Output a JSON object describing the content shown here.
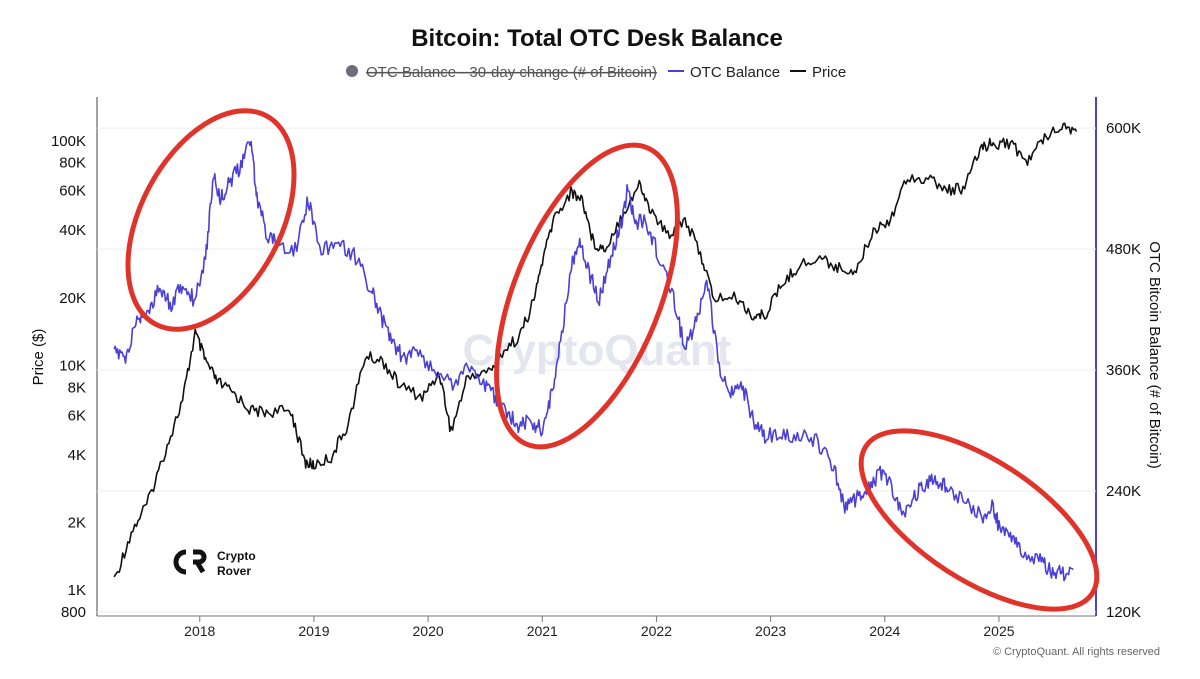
{
  "chart_data": {
    "type": "line",
    "title": "Bitcoin: Total OTC Desk Balance",
    "legend": [
      {
        "name": "OTC Balance - 30-day change (# of Bitcoin)",
        "color": "#6b6e78",
        "marker": "dot",
        "disabled": true
      },
      {
        "name": "OTC Balance",
        "color": "#4b3fd6",
        "marker": "line"
      },
      {
        "name": "Price",
        "color": "#111111",
        "marker": "line"
      }
    ],
    "ylabel_left": "Price ($)",
    "ylabel_right": "OTC Bitcoin Balance (# of Bitcoin)",
    "x_ticks": [
      "2018",
      "2019",
      "2020",
      "2021",
      "2022",
      "2023",
      "2024",
      "2025"
    ],
    "x_tick_years": [
      2018,
      2019,
      2020,
      2021,
      2022,
      2023,
      2024,
      2025
    ],
    "x_range": [
      2017.1,
      2025.85
    ],
    "y_left_scale": "log",
    "y_left_range": [
      800,
      140000
    ],
    "y_left_ticks": [
      {
        "label": "100K",
        "value": 100000
      },
      {
        "label": "80K",
        "value": 80000
      },
      {
        "label": "60K",
        "value": 60000
      },
      {
        "label": "40K",
        "value": 40000
      },
      {
        "label": "20K",
        "value": 20000
      },
      {
        "label": "10K",
        "value": 10000
      },
      {
        "label": "8K",
        "value": 8000
      },
      {
        "label": "6K",
        "value": 6000
      },
      {
        "label": "4K",
        "value": 4000
      },
      {
        "label": "2K",
        "value": 2000
      },
      {
        "label": "1K",
        "value": 1000
      },
      {
        "label": "800",
        "value": 800
      }
    ],
    "y_right_range": [
      120000,
      620000
    ],
    "y_right_ticks": [
      {
        "label": "600K",
        "value": 600000
      },
      {
        "label": "480K",
        "value": 480000
      },
      {
        "label": "360K",
        "value": 360000
      },
      {
        "label": "240K",
        "value": 240000
      },
      {
        "label": "120K",
        "value": 120000
      }
    ],
    "series": [
      {
        "name": "Price",
        "axis": "left",
        "color": "#111111",
        "points": [
          [
            2017.25,
            1100
          ],
          [
            2017.4,
            1800
          ],
          [
            2017.55,
            2500
          ],
          [
            2017.7,
            4200
          ],
          [
            2017.85,
            7000
          ],
          [
            2017.96,
            14000
          ],
          [
            2018.05,
            10500
          ],
          [
            2018.15,
            8500
          ],
          [
            2018.3,
            7500
          ],
          [
            2018.45,
            6300
          ],
          [
            2018.6,
            6200
          ],
          [
            2018.8,
            6300
          ],
          [
            2018.92,
            3700
          ],
          [
            2019.0,
            3600
          ],
          [
            2019.15,
            3900
          ],
          [
            2019.3,
            5500
          ],
          [
            2019.45,
            11000
          ],
          [
            2019.6,
            10500
          ],
          [
            2019.75,
            8200
          ],
          [
            2019.95,
            7200
          ],
          [
            2020.1,
            9300
          ],
          [
            2020.2,
            5100
          ],
          [
            2020.35,
            9000
          ],
          [
            2020.55,
            9500
          ],
          [
            2020.65,
            11500
          ],
          [
            2020.8,
            13500
          ],
          [
            2020.92,
            19000
          ],
          [
            2021.0,
            29000
          ],
          [
            2021.1,
            45000
          ],
          [
            2021.25,
            59000
          ],
          [
            2021.35,
            55000
          ],
          [
            2021.45,
            35000
          ],
          [
            2021.55,
            33000
          ],
          [
            2021.7,
            47000
          ],
          [
            2021.85,
            64000
          ],
          [
            2021.95,
            49000
          ],
          [
            2022.1,
            38000
          ],
          [
            2022.25,
            45000
          ],
          [
            2022.4,
            30000
          ],
          [
            2022.5,
            20000
          ],
          [
            2022.7,
            20000
          ],
          [
            2022.85,
            16500
          ],
          [
            2022.95,
            16800
          ],
          [
            2023.1,
            23000
          ],
          [
            2023.25,
            28000
          ],
          [
            2023.45,
            30000
          ],
          [
            2023.6,
            27000
          ],
          [
            2023.75,
            26500
          ],
          [
            2023.9,
            40000
          ],
          [
            2024.05,
            45000
          ],
          [
            2024.2,
            70000
          ],
          [
            2024.4,
            67000
          ],
          [
            2024.55,
            60000
          ],
          [
            2024.7,
            62000
          ],
          [
            2024.85,
            95000
          ],
          [
            2024.95,
            97000
          ],
          [
            2025.1,
            98000
          ],
          [
            2025.25,
            80000
          ],
          [
            2025.4,
            105000
          ],
          [
            2025.55,
            118000
          ],
          [
            2025.68,
            110000
          ]
        ]
      },
      {
        "name": "OTC Balance",
        "axis": "right",
        "color": "#4b3fd6",
        "points": [
          [
            2017.25,
            380000
          ],
          [
            2017.35,
            370000
          ],
          [
            2017.45,
            410000
          ],
          [
            2017.55,
            420000
          ],
          [
            2017.65,
            440000
          ],
          [
            2017.75,
            425000
          ],
          [
            2017.85,
            445000
          ],
          [
            2017.95,
            430000
          ],
          [
            2018.05,
            470000
          ],
          [
            2018.12,
            555000
          ],
          [
            2018.18,
            530000
          ],
          [
            2018.25,
            545000
          ],
          [
            2018.35,
            560000
          ],
          [
            2018.45,
            590000
          ],
          [
            2018.5,
            530000
          ],
          [
            2018.6,
            490000
          ],
          [
            2018.7,
            485000
          ],
          [
            2018.85,
            480000
          ],
          [
            2018.95,
            530000
          ],
          [
            2019.05,
            480000
          ],
          [
            2019.2,
            485000
          ],
          [
            2019.35,
            475000
          ],
          [
            2019.5,
            440000
          ],
          [
            2019.6,
            410000
          ],
          [
            2019.7,
            385000
          ],
          [
            2019.8,
            370000
          ],
          [
            2019.9,
            380000
          ],
          [
            2020.05,
            360000
          ],
          [
            2020.2,
            345000
          ],
          [
            2020.35,
            365000
          ],
          [
            2020.5,
            345000
          ],
          [
            2020.6,
            330000
          ],
          [
            2020.7,
            315000
          ],
          [
            2020.8,
            305000
          ],
          [
            2020.9,
            310000
          ],
          [
            2021.0,
            300000
          ],
          [
            2021.08,
            335000
          ],
          [
            2021.15,
            380000
          ],
          [
            2021.25,
            460000
          ],
          [
            2021.32,
            490000
          ],
          [
            2021.4,
            460000
          ],
          [
            2021.5,
            430000
          ],
          [
            2021.6,
            470000
          ],
          [
            2021.68,
            500000
          ],
          [
            2021.75,
            540000
          ],
          [
            2021.82,
            505000
          ],
          [
            2021.9,
            510000
          ],
          [
            2022.0,
            480000
          ],
          [
            2022.15,
            430000
          ],
          [
            2022.25,
            380000
          ],
          [
            2022.35,
            410000
          ],
          [
            2022.45,
            445000
          ],
          [
            2022.55,
            360000
          ],
          [
            2022.65,
            335000
          ],
          [
            2022.75,
            345000
          ],
          [
            2022.85,
            310000
          ],
          [
            2022.95,
            295000
          ],
          [
            2023.1,
            295000
          ],
          [
            2023.25,
            295000
          ],
          [
            2023.4,
            290000
          ],
          [
            2023.55,
            265000
          ],
          [
            2023.65,
            225000
          ],
          [
            2023.75,
            232000
          ],
          [
            2023.85,
            240000
          ],
          [
            2023.95,
            258000
          ],
          [
            2024.05,
            245000
          ],
          [
            2024.15,
            215000
          ],
          [
            2024.25,
            235000
          ],
          [
            2024.35,
            245000
          ],
          [
            2024.45,
            252000
          ],
          [
            2024.55,
            245000
          ],
          [
            2024.7,
            230000
          ],
          [
            2024.85,
            215000
          ],
          [
            2024.95,
            225000
          ],
          [
            2025.0,
            205000
          ],
          [
            2025.1,
            195000
          ],
          [
            2025.2,
            180000
          ],
          [
            2025.35,
            172000
          ],
          [
            2025.45,
            160000
          ],
          [
            2025.55,
            158000
          ],
          [
            2025.65,
            162000
          ]
        ]
      }
    ],
    "annotations": [
      {
        "type": "ellipse",
        "label": "highlight 2018"
      },
      {
        "type": "ellipse",
        "label": "highlight 2021"
      },
      {
        "type": "ellipse",
        "label": "highlight 2024-2025"
      }
    ]
  },
  "watermark": "CryptoQuant",
  "copyright": "© CryptoQuant. All rights reserved",
  "logo": {
    "line1": "Crypto",
    "line2": "Rover",
    "mark": "CR"
  }
}
